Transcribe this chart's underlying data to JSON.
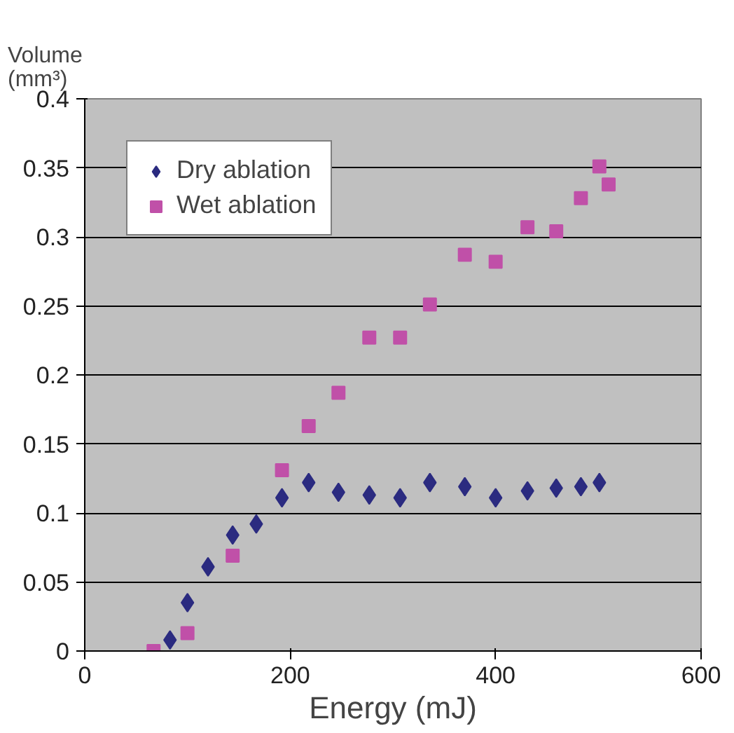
{
  "chart_data": {
    "type": "scatter",
    "xlabel": "Energy (mJ)",
    "ylabel": "Volume (mm³)",
    "xlim": [
      0,
      600
    ],
    "xticks": [
      0,
      200,
      400,
      600
    ],
    "ylim": [
      0,
      0.4
    ],
    "yticks": [
      0,
      0.05,
      0.1,
      0.15,
      0.2,
      0.25,
      0.3,
      0.35,
      0.4
    ],
    "grid": "y",
    "legend": "top left",
    "series": [
      {
        "name": "Dry ablation",
        "color": "#2b2b80",
        "marker": "diamond",
        "x": [
          83,
          100,
          120,
          144,
          167,
          192,
          218,
          247,
          277,
          307,
          336,
          370,
          400,
          431,
          459,
          483,
          501
        ],
        "values": [
          0.008,
          0.035,
          0.061,
          0.084,
          0.092,
          0.111,
          0.122,
          0.115,
          0.113,
          0.111,
          0.122,
          0.119,
          0.111,
          0.116,
          0.118,
          0.119,
          0.122
        ]
      },
      {
        "name": "Wet ablation",
        "color": "#c050a8",
        "marker": "square",
        "x": [
          67,
          100,
          144,
          192,
          218,
          247,
          277,
          307,
          336,
          370,
          400,
          431,
          459,
          483,
          501,
          510
        ],
        "values": [
          0.0,
          0.013,
          0.069,
          0.131,
          0.163,
          0.187,
          0.227,
          0.227,
          0.251,
          0.287,
          0.282,
          0.307,
          0.304,
          0.328,
          0.351,
          0.338
        ]
      }
    ]
  }
}
